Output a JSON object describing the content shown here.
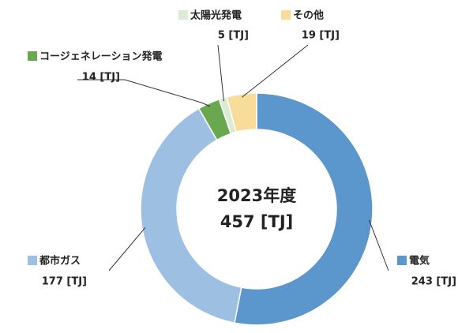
{
  "chart_data": {
    "type": "donut",
    "center_text": [
      "2023年度",
      "457 [TJ]"
    ],
    "categories": [
      "電気",
      "都市ガス",
      "コージェネレーション発電",
      "太陽光発電",
      "その他"
    ],
    "values": [
      243,
      177,
      14,
      5,
      19
    ],
    "value_labels": [
      "243 [TJ]",
      "177 [TJ]",
      "14 [TJ]",
      "5 [TJ]",
      "19 [TJ]"
    ],
    "colors": [
      "#5b96cc",
      "#9dc0e2",
      "#6aa84f",
      "#dcebd4",
      "#f8dd9a"
    ]
  }
}
